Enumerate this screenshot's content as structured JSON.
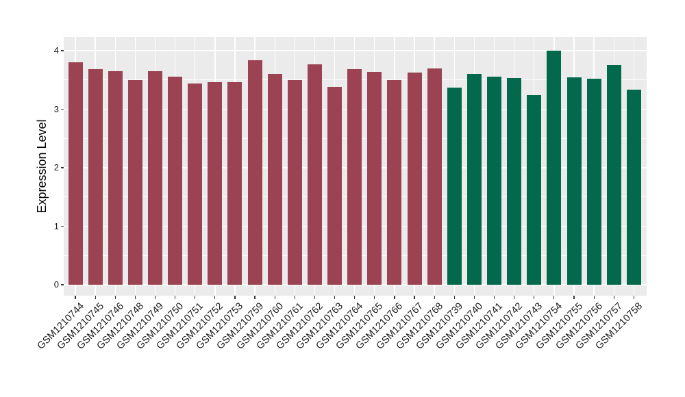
{
  "chart_data": {
    "type": "bar",
    "title": "",
    "xlabel": "",
    "ylabel": "Expression Level",
    "legend_position": "none",
    "grid": "on",
    "panel_background": "#EBEBEB",
    "grid_color": "#FFFFFF",
    "axis_text_color": "#1A1A1A",
    "ylim": [
      0,
      4.2
    ],
    "yticks": [
      "0",
      "1",
      "2",
      "3",
      "4"
    ],
    "ytick_values": [
      0,
      1,
      2,
      3,
      4
    ],
    "yminor_values": [
      0.5,
      1.5,
      2.5,
      3.5
    ],
    "x_tick_rotation": 45,
    "group_colors": {
      "group1": "#9B4352",
      "group2": "#03694C"
    },
    "categories": [
      "GSM1210744",
      "GSM1210745",
      "GSM1210746",
      "GSM1210748",
      "GSM1210749",
      "GSM1210750",
      "GSM1210751",
      "GSM1210752",
      "GSM1210753",
      "GSM1210759",
      "GSM1210760",
      "GSM1210761",
      "GSM1210762",
      "GSM1210763",
      "GSM1210764",
      "GSM1210765",
      "GSM1210766",
      "GSM1210767",
      "GSM1210768",
      "GSM1210739",
      "GSM1210740",
      "GSM1210741",
      "GSM1210742",
      "GSM1210743",
      "GSM1210754",
      "GSM1210755",
      "GSM1210756",
      "GSM1210757",
      "GSM1210758"
    ],
    "values": [
      3.8,
      3.68,
      3.65,
      3.5,
      3.65,
      3.55,
      3.44,
      3.46,
      3.46,
      3.84,
      3.6,
      3.5,
      3.77,
      3.38,
      3.69,
      3.64,
      3.5,
      3.62,
      3.7,
      3.37,
      3.6,
      3.55,
      3.53,
      3.24,
      4.0,
      3.54,
      3.52,
      3.76,
      3.33
    ],
    "bar_groups": [
      "group1",
      "group1",
      "group1",
      "group1",
      "group1",
      "group1",
      "group1",
      "group1",
      "group1",
      "group1",
      "group1",
      "group1",
      "group1",
      "group1",
      "group1",
      "group1",
      "group1",
      "group1",
      "group1",
      "group2",
      "group2",
      "group2",
      "group2",
      "group2",
      "group2",
      "group2",
      "group2",
      "group2",
      "group2"
    ]
  }
}
